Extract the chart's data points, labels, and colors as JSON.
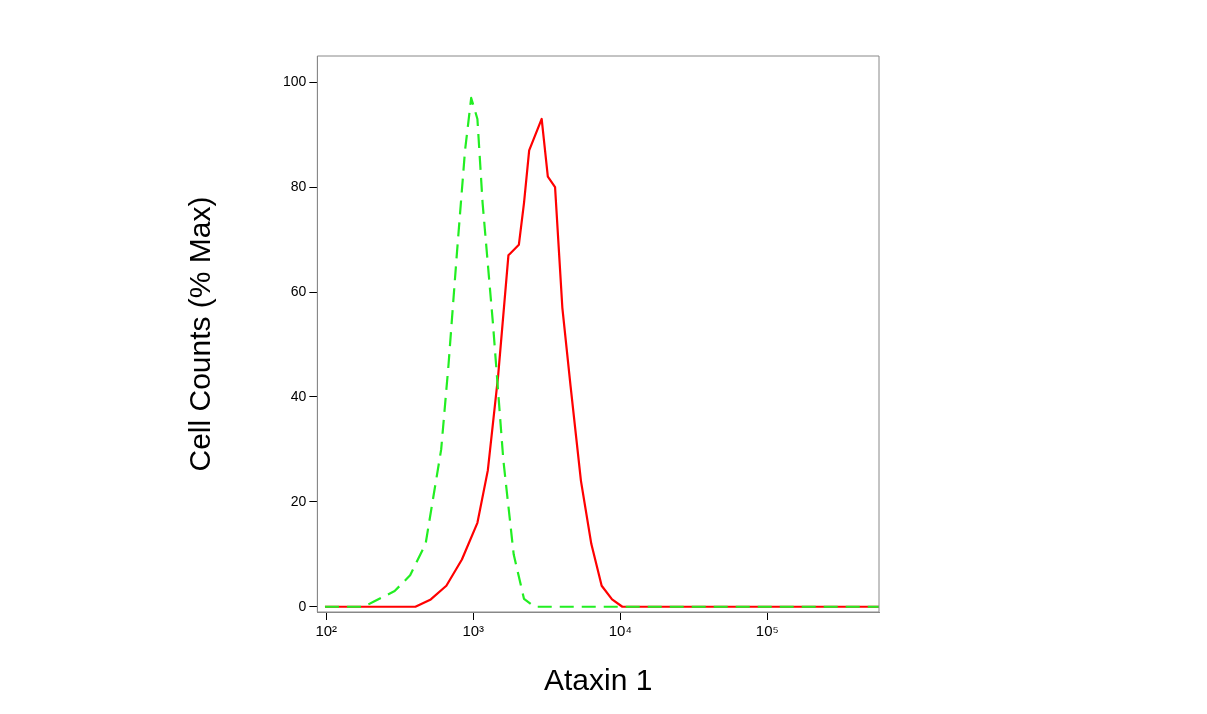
{
  "chart_data": {
    "type": "line",
    "xlabel": "Ataxin 1",
    "ylabel": "Cell Counts (% Max)",
    "log": "x",
    "xlim": [
      87,
      575000
    ],
    "ylim": [
      -1,
      105
    ],
    "xticks": [
      {
        "value": 100,
        "label": "10²"
      },
      {
        "value": 1000,
        "label": "10³"
      },
      {
        "value": 10000,
        "label": "10⁴"
      },
      {
        "value": 100000,
        "label": "10⁵"
      }
    ],
    "yticks": [
      0,
      20,
      40,
      60,
      80,
      100
    ],
    "grid": false,
    "legend": false,
    "marker": "none",
    "series": [
      {
        "color": "#22ee22",
        "line_style": "dashed",
        "x": [
          98,
          180,
          211,
          292,
          372,
          474,
          605,
          678,
          772,
          879,
          968,
          1067,
          1157,
          1361,
          1601,
          1883,
          2214,
          2603,
          575000
        ],
        "values": [
          0,
          0,
          1,
          3,
          6,
          12,
          30,
          46,
          67,
          87,
          97,
          93,
          77,
          54,
          28,
          10,
          1.5,
          0,
          0
        ]
      },
      {
        "color": "#ff0000",
        "line_style": "solid",
        "x": [
          98,
          404,
          514,
          656,
          837,
          1067,
          1256,
          1476,
          1734,
          2042,
          2214,
          2400,
          2735,
          2919,
          3215,
          3600,
          4036,
          4592,
          5400,
          6350,
          7470,
          8790,
          10330,
          575000
        ],
        "values": [
          0,
          0,
          1.4,
          4,
          9,
          16,
          26,
          44,
          67,
          69,
          77,
          87,
          91,
          93,
          82,
          80,
          57,
          42,
          24,
          12,
          4,
          1.4,
          0,
          0
        ]
      }
    ]
  }
}
